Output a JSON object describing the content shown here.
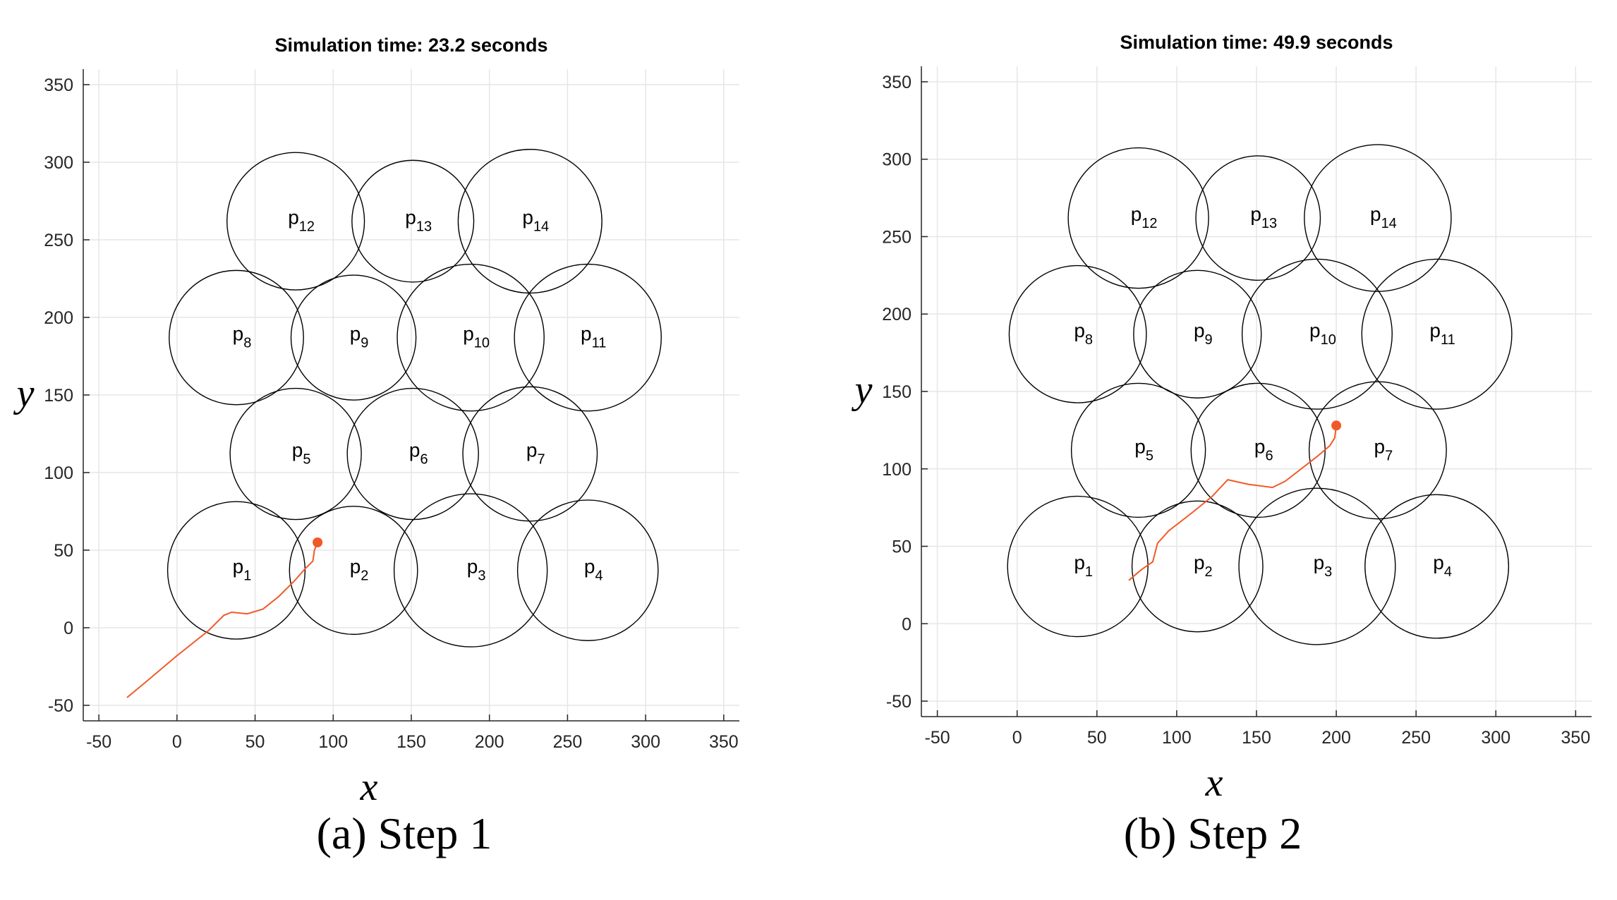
{
  "colors": {
    "circle": "#000000",
    "trajectory": "#f05a28",
    "grid": "#e6e6e6",
    "axis": "#262626"
  },
  "chart_data": [
    {
      "type": "scatter",
      "title": "Simulation time: 23.2 seconds",
      "caption": "(a)  Step 1",
      "xlabel": "x",
      "ylabel": "y",
      "xlim": [
        -60,
        360
      ],
      "ylim": [
        -60,
        360
      ],
      "xticks": [
        -50,
        0,
        50,
        100,
        150,
        200,
        250,
        300,
        350
      ],
      "yticks": [
        -50,
        0,
        50,
        100,
        150,
        200,
        250,
        300,
        350
      ],
      "grid": true,
      "circles": [
        {
          "label": "p",
          "index": "1",
          "x": 38,
          "y": 37,
          "r": 44
        },
        {
          "label": "p",
          "index": "2",
          "x": 113,
          "y": 37,
          "r": 41
        },
        {
          "label": "p",
          "index": "3",
          "x": 188,
          "y": 37,
          "r": 49
        },
        {
          "label": "p",
          "index": "4",
          "x": 263,
          "y": 37,
          "r": 45
        },
        {
          "label": "p",
          "index": "5",
          "x": 76,
          "y": 112,
          "r": 42
        },
        {
          "label": "p",
          "index": "6",
          "x": 151,
          "y": 112,
          "r": 42
        },
        {
          "label": "p",
          "index": "7",
          "x": 226,
          "y": 112,
          "r": 43
        },
        {
          "label": "p",
          "index": "8",
          "x": 38,
          "y": 187,
          "r": 43
        },
        {
          "label": "p",
          "index": "9",
          "x": 113,
          "y": 187,
          "r": 40
        },
        {
          "label": "p",
          "index": "10",
          "x": 188,
          "y": 187,
          "r": 47
        },
        {
          "label": "p",
          "index": "11",
          "x": 263,
          "y": 187,
          "r": 47
        },
        {
          "label": "p",
          "index": "12",
          "x": 76,
          "y": 262,
          "r": 44
        },
        {
          "label": "p",
          "index": "13",
          "x": 151,
          "y": 262,
          "r": 39
        },
        {
          "label": "p",
          "index": "14",
          "x": 226,
          "y": 262,
          "r": 46
        }
      ],
      "trajectory": {
        "x": [
          -32,
          -20,
          0,
          20,
          30,
          35,
          45,
          55,
          65,
          75,
          82,
          87,
          88,
          90
        ],
        "y": [
          -45,
          -35,
          -18,
          -2,
          8,
          10,
          9,
          12,
          20,
          30,
          38,
          43,
          50,
          55
        ]
      },
      "agent": {
        "x": 90,
        "y": 55
      }
    },
    {
      "type": "scatter",
      "title": "Simulation time: 49.9 seconds",
      "caption": "(b)  Step 2",
      "xlabel": "x",
      "ylabel": "y",
      "xlim": [
        -60,
        360
      ],
      "ylim": [
        -60,
        360
      ],
      "xticks": [
        -50,
        0,
        50,
        100,
        150,
        200,
        250,
        300,
        350
      ],
      "yticks": [
        -50,
        0,
        50,
        100,
        150,
        200,
        250,
        300,
        350
      ],
      "grid": true,
      "circles": [
        {
          "label": "p",
          "index": "1",
          "x": 38,
          "y": 37,
          "r": 44
        },
        {
          "label": "p",
          "index": "2",
          "x": 113,
          "y": 37,
          "r": 41
        },
        {
          "label": "p",
          "index": "3",
          "x": 188,
          "y": 37,
          "r": 49
        },
        {
          "label": "p",
          "index": "4",
          "x": 263,
          "y": 37,
          "r": 45
        },
        {
          "label": "p",
          "index": "5",
          "x": 76,
          "y": 112,
          "r": 42
        },
        {
          "label": "p",
          "index": "6",
          "x": 151,
          "y": 112,
          "r": 42
        },
        {
          "label": "p",
          "index": "7",
          "x": 226,
          "y": 112,
          "r": 43
        },
        {
          "label": "p",
          "index": "8",
          "x": 38,
          "y": 187,
          "r": 43
        },
        {
          "label": "p",
          "index": "9",
          "x": 113,
          "y": 187,
          "r": 40
        },
        {
          "label": "p",
          "index": "10",
          "x": 188,
          "y": 187,
          "r": 47
        },
        {
          "label": "p",
          "index": "11",
          "x": 263,
          "y": 187,
          "r": 47
        },
        {
          "label": "p",
          "index": "12",
          "x": 76,
          "y": 262,
          "r": 44
        },
        {
          "label": "p",
          "index": "13",
          "x": 151,
          "y": 262,
          "r": 39
        },
        {
          "label": "p",
          "index": "14",
          "x": 226,
          "y": 262,
          "r": 46
        }
      ],
      "trajectory": {
        "x": [
          70,
          78,
          85,
          88,
          95,
          110,
          122,
          132,
          145,
          160,
          168,
          178,
          188,
          196,
          199,
          200
        ],
        "y": [
          28,
          35,
          40,
          52,
          60,
          72,
          82,
          93,
          90,
          88,
          92,
          100,
          108,
          115,
          120,
          128
        ]
      },
      "agent": {
        "x": 200,
        "y": 128
      }
    }
  ]
}
